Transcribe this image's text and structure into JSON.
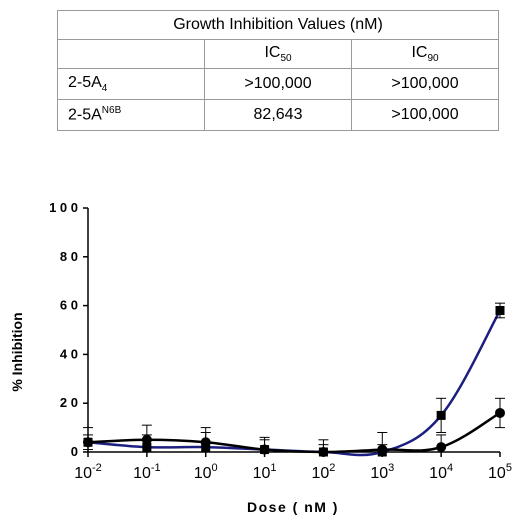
{
  "table": {
    "title": "Growth Inhibition Values (nM)",
    "headers": [
      "",
      "IC",
      "IC"
    ],
    "header_subs": [
      "",
      "50",
      "90"
    ],
    "rows": [
      {
        "label": "2-5A",
        "label_sub": "4",
        "label_sup": "",
        "ic50": ">100,000",
        "ic90": ">100,000"
      },
      {
        "label": "2-5A",
        "label_sub": "",
        "label_sup": "N6B",
        "ic50": "82,643",
        "ic90": ">100,000"
      }
    ]
  },
  "chart_data": {
    "type": "line",
    "title": "",
    "xlabel": "Dose ( nM )",
    "ylabel": "% Inhibition",
    "x_scale": "log",
    "x_tick_base": "10",
    "x_tick_exponents": [
      "-2",
      "-1",
      "0",
      "1",
      "2",
      "3",
      "4",
      "5"
    ],
    "x": [
      0.01,
      0.1,
      1,
      10,
      100,
      1000,
      10000,
      100000
    ],
    "ylim": [
      0,
      100
    ],
    "y_ticks": [
      "0",
      "2 0",
      "4 0",
      "6 0",
      "8 0",
      "1 0 0"
    ],
    "y_tick_values": [
      0,
      20,
      40,
      60,
      80,
      100
    ],
    "grid": false,
    "series": [
      {
        "marker": "square",
        "color": "#1c1f80",
        "values": [
          4,
          2,
          2,
          1,
          0,
          0,
          15,
          58
        ],
        "errors": [
          3,
          5,
          6,
          5,
          5,
          8,
          7,
          3
        ]
      },
      {
        "marker": "circle",
        "color": "#000000",
        "values": [
          4,
          5,
          4,
          1,
          0,
          1,
          2,
          16
        ],
        "errors": [
          6,
          6,
          6,
          4,
          3,
          2,
          5,
          6
        ]
      }
    ]
  }
}
